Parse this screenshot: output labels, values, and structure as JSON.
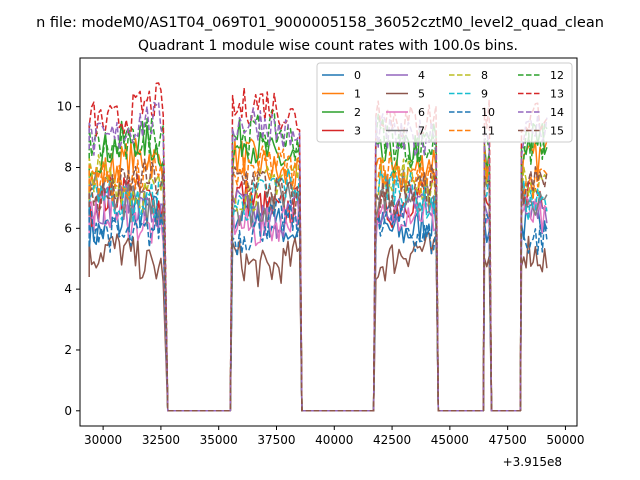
{
  "chart_data": {
    "type": "line",
    "suptitle": "n file: modeM0/AS1T04_069T01_9000005158_36052cztM0_level2_quad_clean",
    "title": "Quadrant 1 module wise count rates with 100.0s bins.",
    "xlabel": "",
    "ylabel": "",
    "x_offset_label": "+3.915e8",
    "xlim": [
      29000,
      50500
    ],
    "ylim": [
      -0.5,
      11.6
    ],
    "x_ticks": [
      30000,
      32500,
      35000,
      37500,
      40000,
      42500,
      45000,
      47500,
      50000
    ],
    "x_tick_labels": [
      "30000",
      "32500",
      "35000",
      "37500",
      "40000",
      "42500",
      "45000",
      "47500",
      "50000"
    ],
    "y_ticks": [
      0,
      2,
      4,
      6,
      8,
      10
    ],
    "y_tick_labels": [
      "0",
      "2",
      "4",
      "6",
      "8",
      "10"
    ],
    "grid": false,
    "legend_position": "top-right",
    "segments": [
      {
        "x_start": 29400,
        "x_end": 32600
      },
      {
        "x_start": 35600,
        "x_end": 38500
      },
      {
        "x_start": 41800,
        "x_end": 44400
      },
      {
        "x_start": 46500,
        "x_end": 46700
      },
      {
        "x_start": 48100,
        "x_end": 49200
      }
    ],
    "zero_gaps": [
      {
        "x_start": 32800,
        "x_end": 35500
      },
      {
        "x_start": 38600,
        "x_end": 41700
      },
      {
        "x_start": 44500,
        "x_end": 46450
      },
      {
        "x_start": 46800,
        "x_end": 48050
      }
    ],
    "series": [
      {
        "name": "0",
        "color": "#1f77b4",
        "dash": "solid",
        "level": 6.2
      },
      {
        "name": "1",
        "color": "#ff7f0e",
        "dash": "solid",
        "level": 8.0
      },
      {
        "name": "2",
        "color": "#2ca02c",
        "dash": "solid",
        "level": 8.6
      },
      {
        "name": "3",
        "color": "#d62728",
        "dash": "solid",
        "level": 6.9
      },
      {
        "name": "4",
        "color": "#9467bd",
        "dash": "solid",
        "level": 6.6
      },
      {
        "name": "5",
        "color": "#8c564b",
        "dash": "solid",
        "level": 5.0
      },
      {
        "name": "6",
        "color": "#e377c2",
        "dash": "solid",
        "level": 6.3
      },
      {
        "name": "7",
        "color": "#7f7f7f",
        "dash": "solid",
        "level": 7.0
      },
      {
        "name": "8",
        "color": "#bcbd22",
        "dash": "dashed",
        "level": 7.5
      },
      {
        "name": "9",
        "color": "#17becf",
        "dash": "dashed",
        "level": 7.1
      },
      {
        "name": "10",
        "color": "#1f77b4",
        "dash": "dashed",
        "level": 6.0
      },
      {
        "name": "11",
        "color": "#ff7f0e",
        "dash": "dashed",
        "level": 7.8
      },
      {
        "name": "12",
        "color": "#2ca02c",
        "dash": "dashed",
        "level": 8.9
      },
      {
        "name": "13",
        "color": "#d62728",
        "dash": "dashed",
        "level": 9.8
      },
      {
        "name": "14",
        "color": "#9467bd",
        "dash": "dashed",
        "level": 9.2
      },
      {
        "name": "15",
        "color": "#8c564b",
        "dash": "dashed",
        "level": 7.3
      }
    ]
  }
}
